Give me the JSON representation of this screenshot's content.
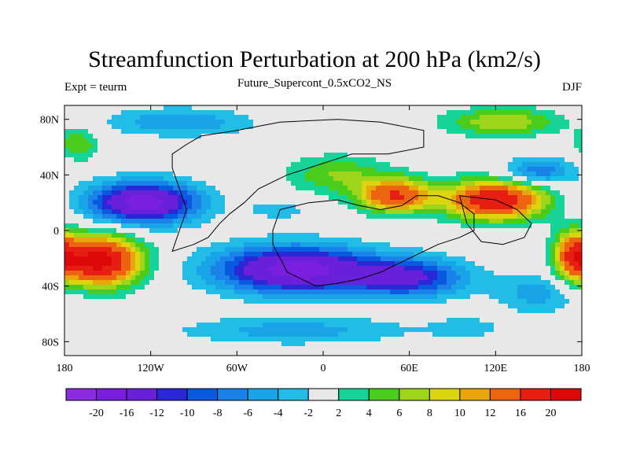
{
  "title": "Streamfunction Perturbation at 200 hPa (km2/s)",
  "subtitle": "Future_Supercont_0.5xCO2_NS",
  "left_string": "Expt = teurm",
  "right_string": "DJF",
  "chart_data": {
    "type": "heatmap",
    "projection": "cylindrical-equidistant",
    "units": "km2/s",
    "grid": false,
    "xlim": [
      -180,
      180
    ],
    "ylim": [
      -90,
      90
    ],
    "x_ticks": [
      {
        "value": -180,
        "label": "180"
      },
      {
        "value": -120,
        "label": "120W"
      },
      {
        "value": -60,
        "label": "60W"
      },
      {
        "value": 0,
        "label": "0"
      },
      {
        "value": 60,
        "label": "60E"
      },
      {
        "value": 120,
        "label": "120E"
      },
      {
        "value": 180,
        "label": "180"
      }
    ],
    "y_ticks": [
      {
        "value": 80,
        "label": "80N"
      },
      {
        "value": 40,
        "label": "40N"
      },
      {
        "value": 0,
        "label": "0"
      },
      {
        "value": -40,
        "label": "40S"
      },
      {
        "value": -80,
        "label": "80S"
      }
    ],
    "levels": [
      -20,
      -16,
      -12,
      -10,
      -8,
      -6,
      -4,
      -2,
      2,
      4,
      6,
      8,
      10,
      12,
      16,
      20
    ],
    "level_labels": [
      "-20",
      "-16",
      "-12",
      "-10",
      "-8",
      "-6",
      "-4",
      "-2",
      "2",
      "4",
      "6",
      "8",
      "10",
      "12",
      "16",
      "20"
    ],
    "colors": [
      "#8a2be2",
      "#7a1fe0",
      "#6a1fd8",
      "#2a28d6",
      "#0a5ae0",
      "#1a82e8",
      "#18a4e6",
      "#22bde6",
      "#e8e8e8",
      "#16d39a",
      "#4acc1c",
      "#9ed41a",
      "#dcd40e",
      "#e8a50c",
      "#ec6410",
      "#e61f12",
      "#de0a0a"
    ],
    "centers": [
      {
        "lon": -125,
        "lat": 20,
        "value": -18,
        "slon": 38,
        "slat": 15
      },
      {
        "lon": -20,
        "lat": -28,
        "value": -18,
        "slon": 55,
        "slat": 17
      },
      {
        "lon": 60,
        "lat": -34,
        "value": -12,
        "slon": 40,
        "slat": 14
      },
      {
        "lon": -155,
        "lat": -22,
        "value": 22,
        "slon": 28,
        "slat": 18
      },
      {
        "lon": 120,
        "lat": 22,
        "value": 20,
        "slon": 35,
        "slat": 14
      },
      {
        "lon": 50,
        "lat": 25,
        "value": 16,
        "slon": 25,
        "slat": 12
      },
      {
        "lon": 10,
        "lat": 40,
        "value": 6,
        "slon": 35,
        "slat": 14
      },
      {
        "lon": -100,
        "lat": 78,
        "value": -6,
        "slon": 50,
        "slat": 10
      },
      {
        "lon": -20,
        "lat": -72,
        "value": -5,
        "slon": 80,
        "slat": 10
      },
      {
        "lon": 150,
        "lat": -45,
        "value": -5,
        "slon": 30,
        "slat": 15
      },
      {
        "lon": 150,
        "lat": 42,
        "value": -8,
        "slon": 25,
        "slat": 10
      },
      {
        "lon": 125,
        "lat": 78,
        "value": 8,
        "slon": 40,
        "slat": 10
      },
      {
        "lon": -170,
        "lat": 62,
        "value": 6,
        "slon": 14,
        "slat": 12
      },
      {
        "lon": 175,
        "lat": -18,
        "value": 14,
        "slon": 14,
        "slat": 18
      },
      {
        "lon": -30,
        "lat": 15,
        "value": -3,
        "slon": 25,
        "slat": 8
      },
      {
        "lon": 100,
        "lat": -70,
        "value": -3,
        "slon": 25,
        "slat": 8
      }
    ]
  }
}
